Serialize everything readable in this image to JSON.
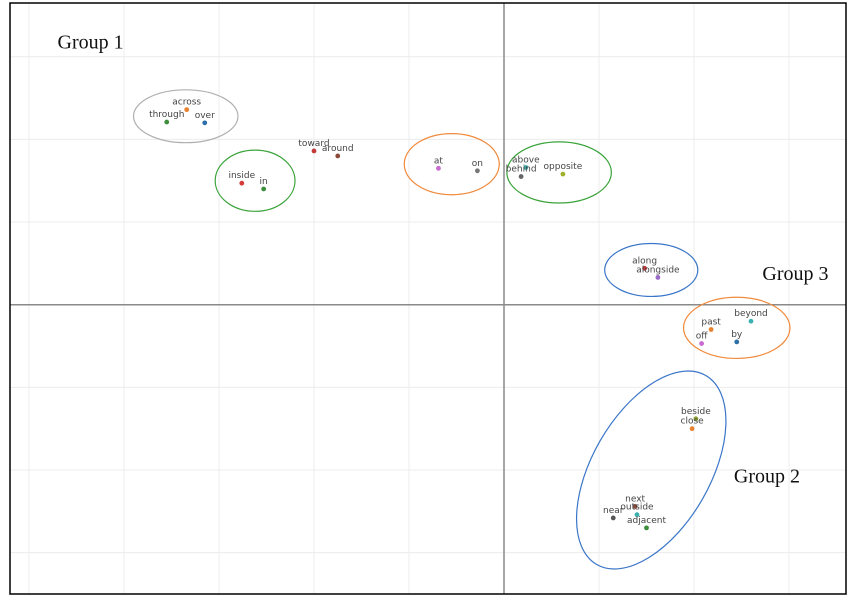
{
  "chart_data": {
    "type": "scatter",
    "title": "",
    "xlabel": "",
    "ylabel": "",
    "xlim": [
      -5.2,
      3.6
    ],
    "ylim": [
      -3.5,
      3.65
    ],
    "grid": true,
    "axes_through_origin": true,
    "colors": {
      "frame": "#000000",
      "grid": "#ececec",
      "axis": "#8a8a8a",
      "label": "#444444",
      "ellipse_gray": "#b0b0b0",
      "ellipse_green": "#3aa33a",
      "ellipse_orange": "#f08a3c",
      "ellipse_blue": "#3a76c8"
    },
    "points": [
      {
        "label": "across",
        "x": -3.34,
        "y": 2.36,
        "color": "#e8822f"
      },
      {
        "label": "through",
        "x": -3.55,
        "y": 2.21,
        "color": "#3d8f3d"
      },
      {
        "label": "over",
        "x": -3.15,
        "y": 2.2,
        "color": "#2d6fa8"
      },
      {
        "label": "toward",
        "x": -2.0,
        "y": 1.86,
        "color": "#c23a3a"
      },
      {
        "label": "around",
        "x": -1.75,
        "y": 1.8,
        "color": "#8b4a3a"
      },
      {
        "label": "inside",
        "x": -2.76,
        "y": 1.47,
        "color": "#d63a3a"
      },
      {
        "label": "in",
        "x": -2.53,
        "y": 1.4,
        "color": "#3d8f3d"
      },
      {
        "label": "at",
        "x": -0.69,
        "y": 1.65,
        "color": "#c86ad0"
      },
      {
        "label": "on",
        "x": -0.28,
        "y": 1.62,
        "color": "#777777"
      },
      {
        "label": "above",
        "x": 0.23,
        "y": 1.66,
        "color": "#3aa3a3"
      },
      {
        "label": "behind",
        "x": 0.18,
        "y": 1.55,
        "color": "#666666"
      },
      {
        "label": "opposite",
        "x": 0.62,
        "y": 1.58,
        "color": "#a0b02a"
      },
      {
        "label": "along",
        "x": 1.48,
        "y": 0.44,
        "color": "#c23a3a"
      },
      {
        "label": "alongside",
        "x": 1.62,
        "y": 0.33,
        "color": "#9a6ac8"
      },
      {
        "label": "beyond",
        "x": 2.6,
        "y": -0.2,
        "color": "#3ab0b0"
      },
      {
        "label": "past",
        "x": 2.18,
        "y": -0.3,
        "color": "#e8822f"
      },
      {
        "label": "by",
        "x": 2.45,
        "y": -0.45,
        "color": "#2d6fa8"
      },
      {
        "label": "off",
        "x": 2.08,
        "y": -0.47,
        "color": "#c86ad0"
      },
      {
        "label": "beside",
        "x": 2.02,
        "y": -1.38,
        "color": "#8aa02a"
      },
      {
        "label": "close",
        "x": 1.98,
        "y": -1.5,
        "color": "#e8822f"
      },
      {
        "label": "next",
        "x": 1.38,
        "y": -2.44,
        "color": "#8b4a3a"
      },
      {
        "label": "outside",
        "x": 1.4,
        "y": -2.54,
        "color": "#3ab0b0"
      },
      {
        "label": "near",
        "x": 1.15,
        "y": -2.58,
        "color": "#555555"
      },
      {
        "label": "adjacent",
        "x": 1.5,
        "y": -2.7,
        "color": "#3d8f3d"
      }
    ],
    "ellipses": [
      {
        "cx": -3.35,
        "cy": 2.28,
        "rx": 0.55,
        "ry": 0.32,
        "rotation": 0,
        "color": "#b0b0b0"
      },
      {
        "cx": -2.62,
        "cy": 1.5,
        "rx": 0.42,
        "ry": 0.37,
        "rotation": 0,
        "color": "#3aa33a"
      },
      {
        "cx": -0.55,
        "cy": 1.7,
        "rx": 0.5,
        "ry": 0.37,
        "rotation": 0,
        "color": "#f08a3c"
      },
      {
        "cx": 0.58,
        "cy": 1.6,
        "rx": 0.55,
        "ry": 0.37,
        "rotation": 0,
        "color": "#3aa33a"
      },
      {
        "cx": 1.55,
        "cy": 0.42,
        "rx": 0.49,
        "ry": 0.32,
        "rotation": 0,
        "color": "#3a76c8"
      },
      {
        "cx": 2.45,
        "cy": -0.28,
        "rx": 0.56,
        "ry": 0.37,
        "rotation": 0,
        "color": "#f08a3c"
      },
      {
        "cx": 1.55,
        "cy": -2.0,
        "rx": 0.62,
        "ry": 1.32,
        "rotation": 30,
        "color": "#3a76c8"
      }
    ],
    "annotations": [
      {
        "text": "Group 1",
        "x": -4.7,
        "y": 3.1
      },
      {
        "text": "Group 3",
        "x": 2.72,
        "y": 0.3
      },
      {
        "text": "Group 2",
        "x": 2.42,
        "y": -2.15
      }
    ]
  }
}
